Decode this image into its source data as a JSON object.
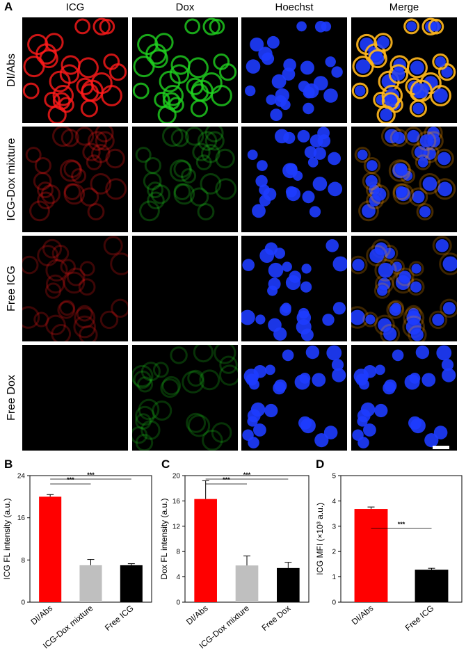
{
  "figure": {
    "panel_a_label": "A",
    "columns": [
      "ICG",
      "Dox",
      "Hoechst",
      "Merge"
    ],
    "rows": [
      "DI/Abs",
      "ICG-Dox mixture",
      "Free ICG",
      "Free Dox"
    ]
  },
  "chart_data": [
    {
      "panel": "B",
      "type": "bar",
      "categories": [
        "DI/Abs",
        "ICG-Dox mixture",
        "Free ICG"
      ],
      "values": [
        20.0,
        7.0,
        7.0
      ],
      "errors": [
        0.4,
        1.1,
        0.3
      ],
      "colors": [
        "#ff0000",
        "#bfbfbf",
        "#000000"
      ],
      "ylabel": "ICG FL intensity (a.u.)",
      "ylim": [
        0,
        24
      ],
      "yticks": [
        "0",
        "8",
        "16",
        "24"
      ],
      "significance": [
        {
          "from": 0,
          "to": 1,
          "label": "***"
        },
        {
          "from": 0,
          "to": 2,
          "label": "***"
        }
      ]
    },
    {
      "panel": "C",
      "type": "bar",
      "categories": [
        "DI/Abs",
        "ICG-Dox mixture",
        "Free Dox"
      ],
      "values": [
        16.3,
        5.8,
        5.4
      ],
      "errors": [
        2.9,
        1.5,
        0.9
      ],
      "colors": [
        "#ff0000",
        "#bfbfbf",
        "#000000"
      ],
      "ylabel": "Dox FL intensity (a.u.)",
      "ylim": [
        0,
        20
      ],
      "yticks": [
        "0",
        "4",
        "8",
        "12",
        "16",
        "20"
      ],
      "significance": [
        {
          "from": 0,
          "to": 1,
          "label": "***"
        },
        {
          "from": 0,
          "to": 2,
          "label": "***"
        }
      ]
    },
    {
      "panel": "D",
      "type": "bar",
      "categories": [
        "DI/Abs",
        "Free ICG"
      ],
      "values": [
        3.68,
        1.28
      ],
      "errors": [
        0.08,
        0.06
      ],
      "colors": [
        "#ff0000",
        "#000000"
      ],
      "ylabel": "ICG MFI (×10³ a.u.)",
      "ylim": [
        0,
        5
      ],
      "yticks": [
        "0",
        "1",
        "2",
        "3",
        "4",
        "5"
      ],
      "significance": [
        {
          "from": 0,
          "to": 1,
          "label": "***"
        }
      ]
    }
  ]
}
